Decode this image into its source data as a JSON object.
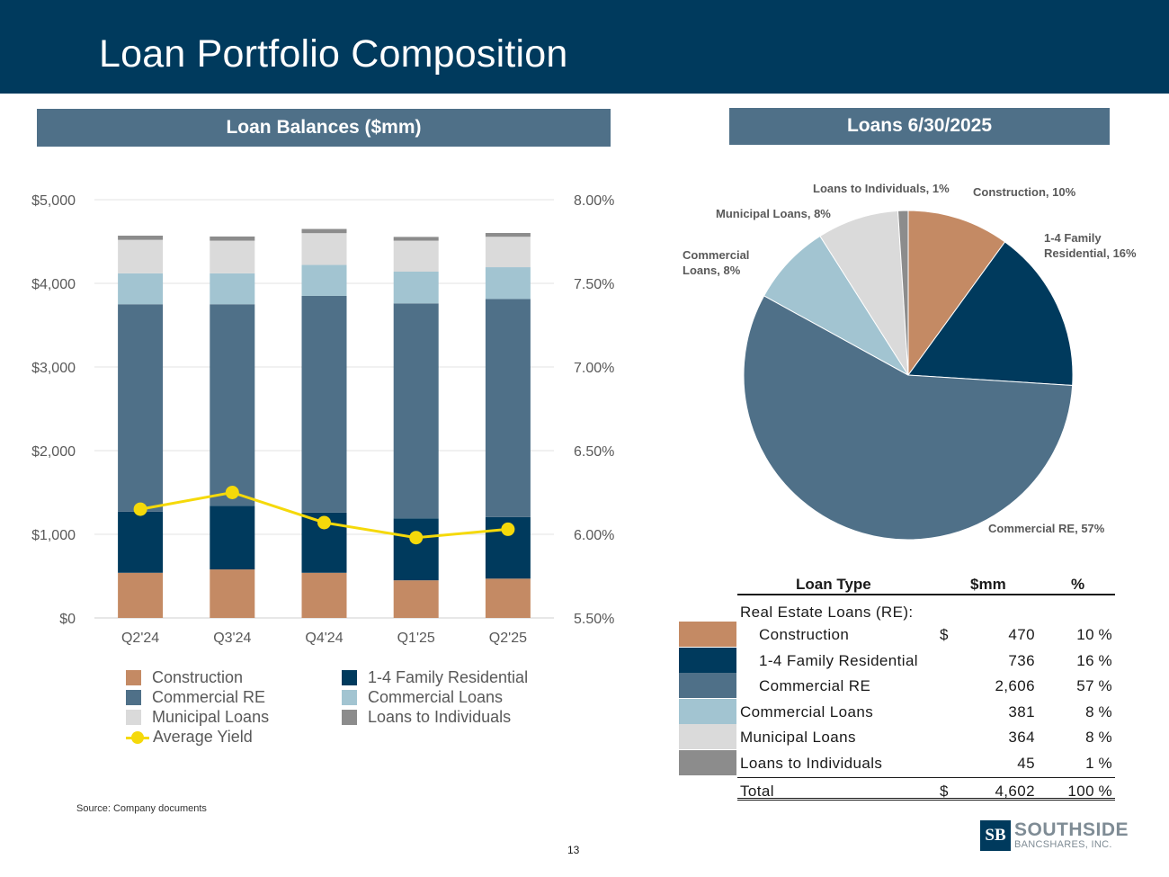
{
  "header": {
    "title": "Loan Portfolio Composition"
  },
  "sections": {
    "left_title": "Loan Balances ($mm)",
    "right_title": "Loans 6/30/2025"
  },
  "colors": {
    "header_bg": "#003a5d",
    "banner_bg": "#4f7088",
    "construction": "#c48a64",
    "family_residential": "#003a5d",
    "commercial_re": "#4f7088",
    "commercial_loans": "#a2c4d1",
    "municipal_loans": "#dadada",
    "loans_to_individuals": "#8c8c8c",
    "average_yield": "#f5d90a"
  },
  "chart_data": [
    {
      "type": "bar",
      "stacked": true,
      "categories": [
        "Q2'24",
        "Q3'24",
        "Q4'24",
        "Q1'25",
        "Q2'25"
      ],
      "series": [
        {
          "name": "Construction",
          "color_key": "construction",
          "values": [
            540,
            580,
            540,
            450,
            470
          ]
        },
        {
          "name": "1-4 Family Residential",
          "color_key": "family_residential",
          "values": [
            730,
            760,
            720,
            740,
            736
          ]
        },
        {
          "name": "Commercial RE",
          "color_key": "commercial_re",
          "values": [
            2480,
            2410,
            2590,
            2570,
            2606
          ]
        },
        {
          "name": "Commercial Loans",
          "color_key": "commercial_loans",
          "values": [
            370,
            370,
            370,
            380,
            381
          ]
        },
        {
          "name": "Municipal Loans",
          "color_key": "municipal_loans",
          "values": [
            400,
            390,
            380,
            370,
            364
          ]
        },
        {
          "name": "Loans to Individuals",
          "color_key": "loans_to_individuals",
          "values": [
            50,
            50,
            50,
            45,
            45
          ]
        }
      ],
      "line_series": {
        "name": "Average Yield",
        "color_key": "average_yield",
        "values": [
          6.15,
          6.25,
          6.07,
          5.98,
          6.03
        ],
        "axis": "right"
      },
      "y_left": {
        "min": 0,
        "max": 5000,
        "step": 1000,
        "ticks": [
          "$0",
          "$1,000",
          "$2,000",
          "$3,000",
          "$4,000",
          "$5,000"
        ]
      },
      "y_right": {
        "min": 5.5,
        "max": 8.0,
        "step": 0.5,
        "ticks": [
          "5.50%",
          "6.00%",
          "6.50%",
          "7.00%",
          "7.50%",
          "8.00%"
        ]
      },
      "grid": true,
      "legend": {
        "position": "bottom",
        "items": [
          {
            "label": "Construction",
            "color_key": "construction",
            "kind": "box"
          },
          {
            "label": "1-4 Family Residential",
            "color_key": "family_residential",
            "kind": "box"
          },
          {
            "label": "Commercial RE",
            "color_key": "commercial_re",
            "kind": "box"
          },
          {
            "label": "Commercial Loans",
            "color_key": "commercial_loans",
            "kind": "box"
          },
          {
            "label": "Municipal Loans",
            "color_key": "municipal_loans",
            "kind": "box"
          },
          {
            "label": "Loans to Individuals",
            "color_key": "loans_to_individuals",
            "kind": "box"
          },
          {
            "label": "Average Yield",
            "color_key": "average_yield",
            "kind": "line"
          }
        ]
      }
    },
    {
      "type": "pie",
      "slices": [
        {
          "name": "Construction",
          "value": 10,
          "label": "Construction, 10%",
          "color_key": "construction"
        },
        {
          "name": "1-4 Family Residential",
          "value": 16,
          "label": "1-4 Family Residential, 16%",
          "color_key": "family_residential"
        },
        {
          "name": "Commercial RE",
          "value": 57,
          "label": "Commercial RE, 57%",
          "color_key": "commercial_re"
        },
        {
          "name": "Commercial Loans",
          "value": 8,
          "label": "Commercial Loans, 8%",
          "color_key": "commercial_loans"
        },
        {
          "name": "Municipal Loans",
          "value": 8,
          "label": "Municipal Loans, 8%",
          "color_key": "municipal_loans"
        },
        {
          "name": "Loans to Individuals",
          "value": 1,
          "label": "Loans to Individuals, 1%",
          "color_key": "loans_to_individuals"
        }
      ]
    }
  ],
  "table": {
    "headers": {
      "type": "Loan Type",
      "mm": "$mm",
      "pct": "%"
    },
    "re_label": "Real Estate Loans (RE):",
    "rows": [
      {
        "label": "Construction",
        "dollar": "$",
        "mm": "470",
        "pct": "10",
        "pct_sign": "%",
        "color_key": "construction"
      },
      {
        "label": "1-4 Family Residential",
        "dollar": "",
        "mm": "736",
        "pct": "16",
        "pct_sign": "%",
        "color_key": "family_residential"
      },
      {
        "label": "Commercial RE",
        "dollar": "",
        "mm": "2,606",
        "pct": "57",
        "pct_sign": "%",
        "color_key": "commercial_re"
      },
      {
        "label": "Commercial Loans",
        "dollar": "",
        "mm": "381",
        "pct": "8",
        "pct_sign": "%",
        "color_key": "commercial_loans"
      },
      {
        "label": "Municipal Loans",
        "dollar": "",
        "mm": "364",
        "pct": "8",
        "pct_sign": "%",
        "color_key": "municipal_loans"
      },
      {
        "label": "Loans to Individuals",
        "dollar": "",
        "mm": "45",
        "pct": "1",
        "pct_sign": "%",
        "color_key": "loans_to_individuals"
      }
    ],
    "total": {
      "label": "Total",
      "dollar": "$",
      "mm": "4,602",
      "pct": "100",
      "pct_sign": "%"
    }
  },
  "footer": {
    "source": "Source: Company documents",
    "page_number": "13",
    "logo_mark": "SB",
    "logo_name": "SOUTHSIDE",
    "logo_sub": "BANCSHARES, INC."
  }
}
